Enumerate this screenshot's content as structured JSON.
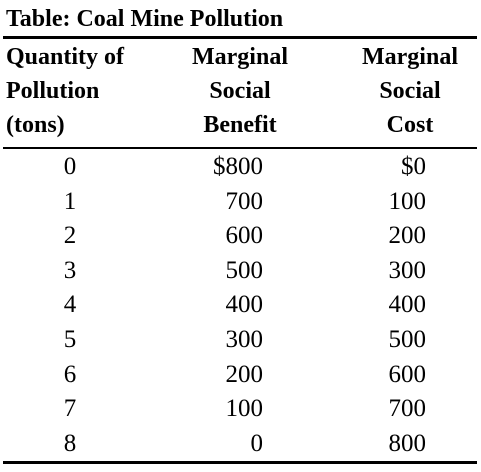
{
  "title": "Table: Coal Mine Pollution",
  "headers": {
    "quantity": [
      "Quantity of",
      "Pollution",
      "(tons)"
    ],
    "benefit": [
      "Marginal",
      "Social",
      "Benefit"
    ],
    "cost": [
      "Marginal",
      "Social",
      "Cost"
    ]
  },
  "chart_data": {
    "type": "table",
    "title": "Table: Coal Mine Pollution",
    "columns": [
      "Quantity of Pollution (tons)",
      "Marginal Social Benefit",
      "Marginal Social Cost"
    ],
    "rows": [
      [
        "0",
        "$800",
        "$0"
      ],
      [
        "1",
        "700",
        "100"
      ],
      [
        "2",
        "600",
        "200"
      ],
      [
        "3",
        "500",
        "300"
      ],
      [
        "4",
        "400",
        "400"
      ],
      [
        "5",
        "300",
        "500"
      ],
      [
        "6",
        "200",
        "600"
      ],
      [
        "7",
        "100",
        "700"
      ],
      [
        "8",
        "0",
        "800"
      ]
    ]
  }
}
